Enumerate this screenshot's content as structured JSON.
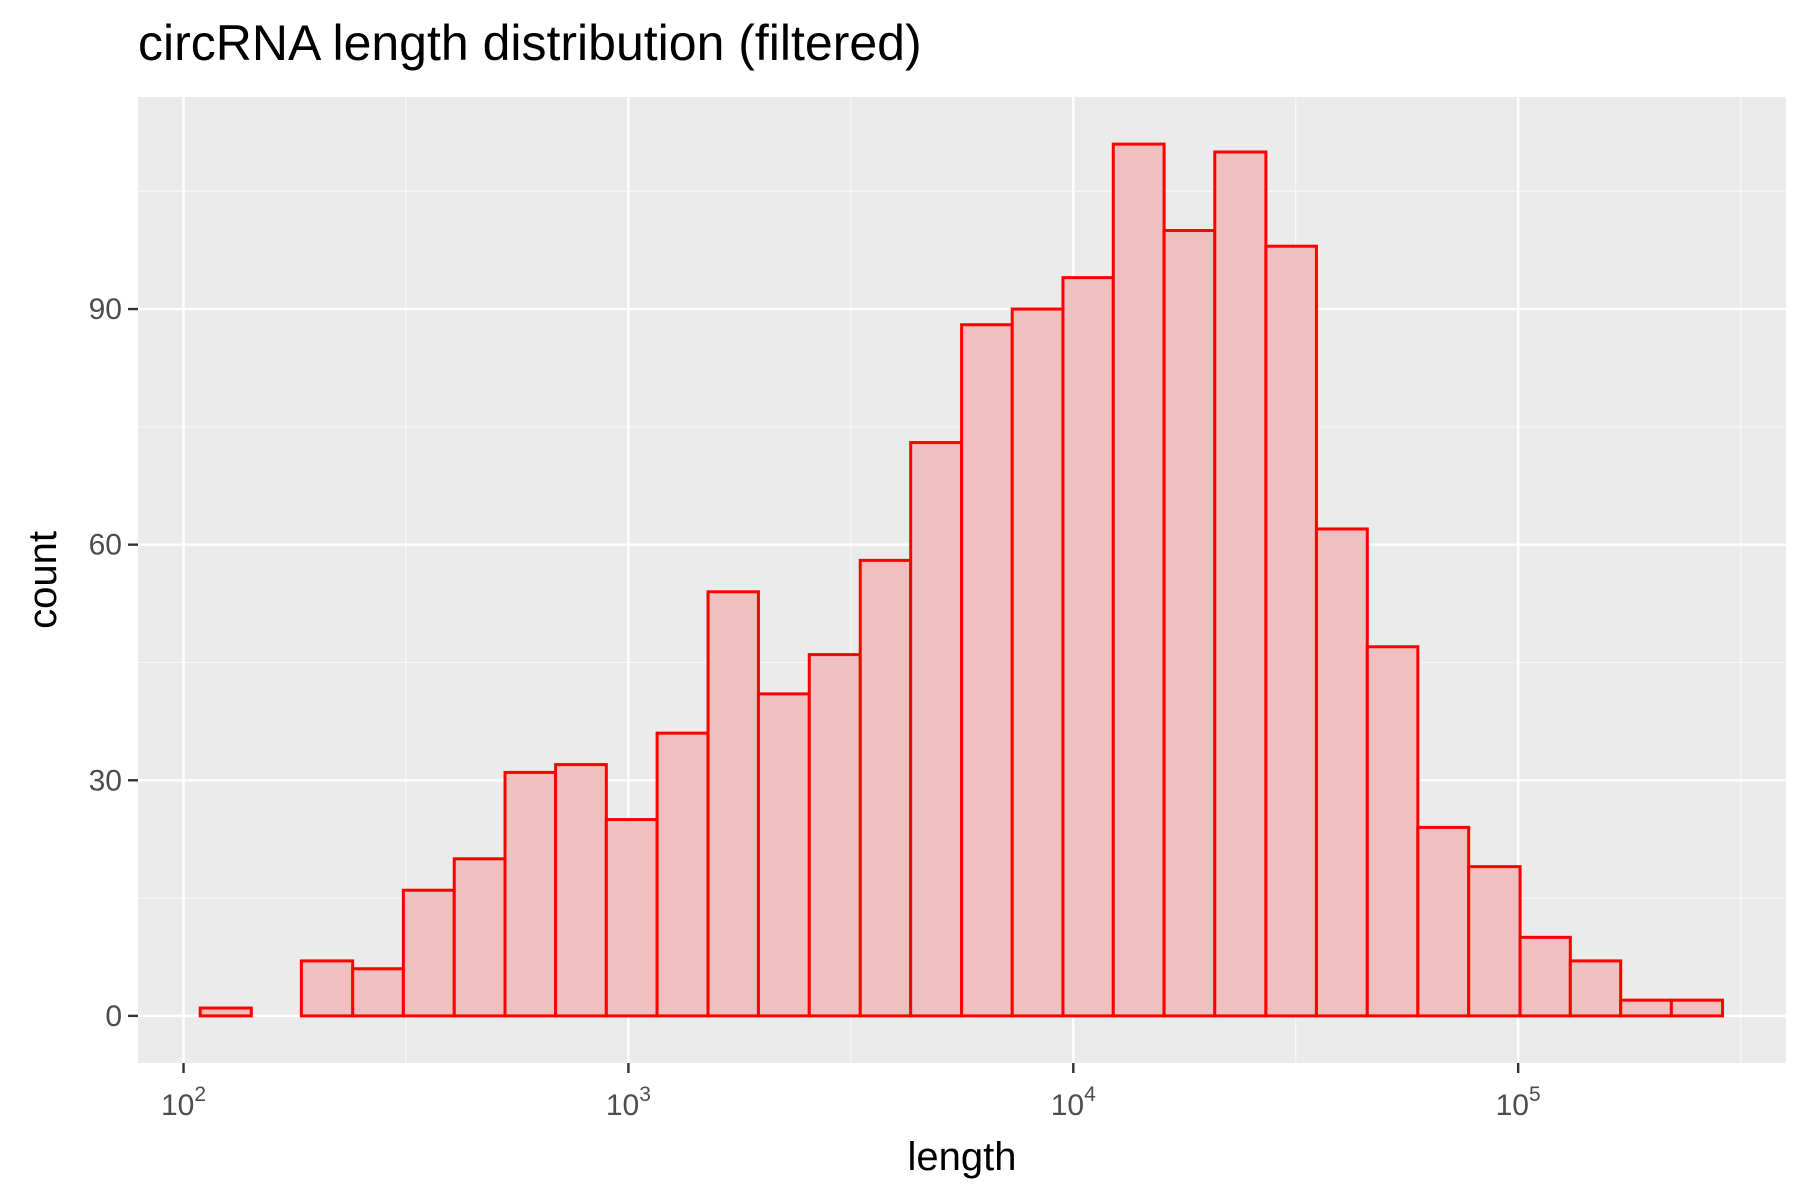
{
  "chart_data": {
    "type": "bar",
    "title": "circRNA length distribution (filtered)",
    "xlabel": "length",
    "ylabel": "count",
    "x_scale": "log10",
    "xlim": [
      79,
      400000
    ],
    "ylim": [
      -6,
      117
    ],
    "grid": true,
    "x_ticks": [
      {
        "value": 100,
        "base": "10",
        "exp": "2"
      },
      {
        "value": 1000,
        "base": "10",
        "exp": "3"
      },
      {
        "value": 10000,
        "base": "10",
        "exp": "4"
      },
      {
        "value": 100000,
        "base": "10",
        "exp": "5"
      }
    ],
    "y_ticks": [
      0,
      30,
      60,
      90
    ],
    "bins": [
      {
        "x_start": 109,
        "x_end": 142,
        "count": 1
      },
      {
        "x_start": 142,
        "x_end": 184,
        "count": 0
      },
      {
        "x_start": 184,
        "x_end": 240,
        "count": 7
      },
      {
        "x_start": 240,
        "x_end": 312,
        "count": 6
      },
      {
        "x_start": 312,
        "x_end": 406,
        "count": 16
      },
      {
        "x_start": 406,
        "x_end": 528,
        "count": 20
      },
      {
        "x_start": 528,
        "x_end": 686,
        "count": 31
      },
      {
        "x_start": 686,
        "x_end": 892,
        "count": 32
      },
      {
        "x_start": 892,
        "x_end": 1160,
        "count": 25
      },
      {
        "x_start": 1160,
        "x_end": 1510,
        "count": 36
      },
      {
        "x_start": 1510,
        "x_end": 1960,
        "count": 54
      },
      {
        "x_start": 1960,
        "x_end": 2550,
        "count": 41
      },
      {
        "x_start": 2550,
        "x_end": 3320,
        "count": 46
      },
      {
        "x_start": 3320,
        "x_end": 4310,
        "count": 58
      },
      {
        "x_start": 4310,
        "x_end": 5610,
        "count": 73
      },
      {
        "x_start": 5610,
        "x_end": 7290,
        "count": 88
      },
      {
        "x_start": 7290,
        "x_end": 9480,
        "count": 90
      },
      {
        "x_start": 9480,
        "x_end": 12300,
        "count": 94
      },
      {
        "x_start": 12300,
        "x_end": 16000,
        "count": 111
      },
      {
        "x_start": 16000,
        "x_end": 20800,
        "count": 100
      },
      {
        "x_start": 20800,
        "x_end": 27100,
        "count": 110
      },
      {
        "x_start": 27100,
        "x_end": 35200,
        "count": 98
      },
      {
        "x_start": 35200,
        "x_end": 45800,
        "count": 62
      },
      {
        "x_start": 45800,
        "x_end": 59500,
        "count": 47
      },
      {
        "x_start": 59500,
        "x_end": 77400,
        "count": 24
      },
      {
        "x_start": 77400,
        "x_end": 101000,
        "count": 19
      },
      {
        "x_start": 101000,
        "x_end": 131000,
        "count": 10
      },
      {
        "x_start": 131000,
        "x_end": 170000,
        "count": 7
      },
      {
        "x_start": 170000,
        "x_end": 221000,
        "count": 2
      },
      {
        "x_start": 221000,
        "x_end": 288000,
        "count": 2
      }
    ],
    "colors": {
      "bar_fill": "#f0bfbf",
      "bar_stroke": "#ff0000",
      "panel_background": "#ebebeb",
      "grid_major": "#ffffff",
      "grid_minor": "#f7f7f7",
      "tick_text": "#4d4d4d"
    }
  }
}
